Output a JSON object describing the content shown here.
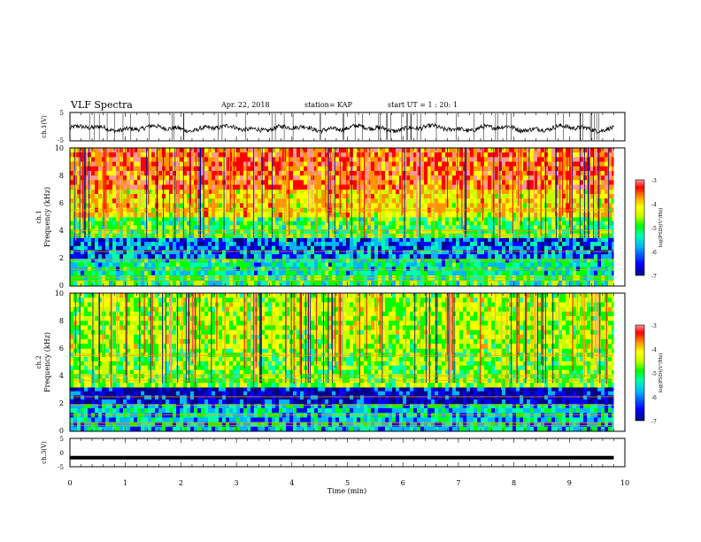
{
  "header": {
    "title": "VLF Spectra",
    "date": "Apr. 22, 2018",
    "station": "station= KAP",
    "start": "start  UT =  1 : 20: 1"
  },
  "chart_data": [
    {
      "type": "line",
      "panel": "ch1-waveform",
      "ylabel": "ch.1(V)",
      "ylim": [
        -5,
        5
      ],
      "yticks": [
        "5",
        "-5"
      ],
      "series": [
        {
          "values_description": "noisy oscillation between about -2 and 1 V over 0-9.8 min"
        }
      ]
    },
    {
      "type": "heatmap",
      "panel": "ch1-spectrogram",
      "ylabel_top": "ch.1",
      "ylabel": "Frequency (kHz)",
      "ylim": [
        0,
        10
      ],
      "yticks": [
        "0",
        "2",
        "4",
        "6",
        "8",
        "10"
      ],
      "colorbar": {
        "label": "log(PSD)(V²/Hz)",
        "range": [
          -7,
          -3
        ],
        "ticks": [
          "-3",
          "-4",
          "-5",
          "-6",
          "-7"
        ]
      },
      "bands": [
        {
          "freq": [
            0,
            0.8
          ],
          "level": -5.3
        },
        {
          "freq": [
            0.8,
            2.0
          ],
          "level": -5.6
        },
        {
          "freq": [
            2.0,
            3.5
          ],
          "level": -6.2
        },
        {
          "freq": [
            3.5,
            5.0
          ],
          "level": -5.2
        },
        {
          "freq": [
            5.0,
            7.0
          ],
          "level": -4.4
        },
        {
          "freq": [
            7.0,
            10.0
          ],
          "level": -3.8
        }
      ]
    },
    {
      "type": "heatmap",
      "panel": "ch2-spectrogram",
      "ylabel_top": "ch.2",
      "ylabel": "Frequency (kHz)",
      "ylim": [
        0,
        10
      ],
      "yticks": [
        "0",
        "2",
        "4",
        "6",
        "8",
        "10"
      ],
      "colorbar": {
        "label": "log(PSD)(V²/Hz)",
        "range": [
          -7,
          -3
        ],
        "ticks": [
          "-3",
          "-4",
          "-5",
          "-6",
          "-7"
        ]
      },
      "bands": [
        {
          "freq": [
            0,
            2.0
          ],
          "level": -5.8
        },
        {
          "freq": [
            2.0,
            3.2
          ],
          "level": -6.6
        },
        {
          "freq": [
            3.2,
            6.0
          ],
          "level": -5.0
        },
        {
          "freq": [
            6.0,
            10.0
          ],
          "level": -4.8
        }
      ]
    },
    {
      "type": "line",
      "panel": "ch3-waveform",
      "ylabel": "ch.3(V)",
      "ylim": [
        -5,
        5
      ],
      "yticks": [
        "5",
        "0",
        "-5"
      ],
      "series": [
        {
          "values_description": "constant near -1.8 V"
        }
      ],
      "level": -1.8
    }
  ],
  "xaxis": {
    "label": "Time (min)",
    "range": [
      0,
      10
    ],
    "ticks": [
      "0",
      "1",
      "2",
      "3",
      "4",
      "5",
      "6",
      "7",
      "8",
      "9",
      "10"
    ],
    "data_end": 9.8
  },
  "colors": {
    "colormap": [
      "#000088",
      "#0000ff",
      "#00b4ff",
      "#00ffaa",
      "#00ff00",
      "#c8ff00",
      "#ffff00",
      "#ff9600",
      "#ff0000",
      "#ff9696"
    ]
  }
}
